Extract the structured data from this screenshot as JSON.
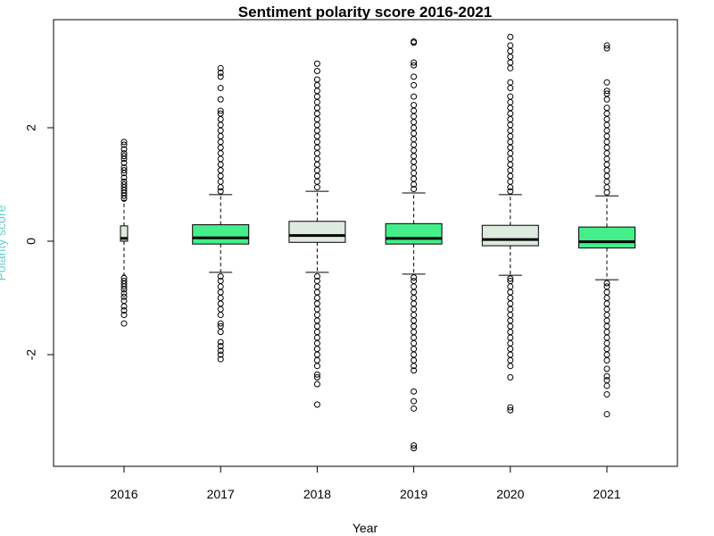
{
  "chart_data": {
    "type": "boxplot",
    "title": "Sentiment polarity score 2016-2021",
    "xlabel": "Year",
    "ylabel": "Polarity score",
    "ylim": [
      -3.9,
      3.9
    ],
    "yticks": [
      -2,
      0,
      2
    ],
    "grid": false,
    "categories": [
      "2016",
      "2017",
      "2018",
      "2019",
      "2020",
      "2021"
    ],
    "box_colors": [
      "#dfeadf",
      "#44ee88",
      "#dfeadf",
      "#44ee88",
      "#dfeadf",
      "#44ee88"
    ],
    "boxes": [
      {
        "year": "2016",
        "whisker_low": -0.6,
        "q1": 0.0,
        "median": 0.05,
        "q3": 0.27,
        "whisker_high": 0.72,
        "outliers": [
          -1.45,
          -1.3,
          -1.22,
          -1.15,
          -1.05,
          -0.98,
          -0.92,
          -0.85,
          -0.8,
          -0.75,
          -0.7,
          -0.65,
          0.75,
          0.8,
          0.85,
          0.9,
          0.95,
          1.0,
          1.05,
          1.12,
          1.2,
          1.25,
          1.3,
          1.38,
          1.45,
          1.5,
          1.55,
          1.62,
          1.7,
          1.75
        ]
      },
      {
        "year": "2017",
        "whisker_low": -0.55,
        "q1": -0.05,
        "median": 0.06,
        "q3": 0.29,
        "whisker_high": 0.82,
        "outliers": [
          -2.08,
          -2.0,
          -1.93,
          -1.85,
          -1.78,
          -1.6,
          -1.5,
          -1.45,
          -1.3,
          -1.2,
          -1.1,
          -1.0,
          -0.9,
          -0.8,
          -0.7,
          -0.62,
          0.88,
          0.95,
          1.05,
          1.15,
          1.25,
          1.35,
          1.45,
          1.55,
          1.65,
          1.75,
          1.85,
          1.95,
          2.05,
          2.15,
          2.25,
          2.3,
          2.5,
          2.7,
          2.9,
          2.97,
          3.05
        ]
      },
      {
        "year": "2018",
        "whisker_low": -0.55,
        "q1": -0.02,
        "median": 0.1,
        "q3": 0.35,
        "whisker_high": 0.88,
        "outliers": [
          -2.88,
          -2.52,
          -2.4,
          -2.35,
          -2.2,
          -2.1,
          -2.0,
          -1.9,
          -1.8,
          -1.7,
          -1.6,
          -1.5,
          -1.4,
          -1.3,
          -1.2,
          -1.1,
          -1.0,
          -0.9,
          -0.8,
          -0.7,
          -0.62,
          0.95,
          1.05,
          1.15,
          1.25,
          1.35,
          1.45,
          1.55,
          1.65,
          1.75,
          1.85,
          1.95,
          2.05,
          2.15,
          2.25,
          2.35,
          2.45,
          2.55,
          2.65,
          2.75,
          2.85,
          3.0,
          3.13
        ]
      },
      {
        "year": "2019",
        "whisker_low": -0.58,
        "q1": -0.05,
        "median": 0.05,
        "q3": 0.31,
        "whisker_high": 0.85,
        "outliers": [
          -3.65,
          -3.6,
          -2.95,
          -2.82,
          -2.65,
          -2.28,
          -2.2,
          -2.1,
          -2.0,
          -1.9,
          -1.8,
          -1.7,
          -1.6,
          -1.5,
          -1.4,
          -1.3,
          -1.2,
          -1.1,
          -1.0,
          -0.9,
          -0.8,
          -0.7,
          -0.64,
          0.92,
          1.0,
          1.1,
          1.2,
          1.3,
          1.4,
          1.5,
          1.6,
          1.7,
          1.8,
          1.9,
          2.0,
          2.1,
          2.2,
          2.3,
          2.4,
          2.55,
          2.75,
          2.9,
          3.1,
          3.15,
          3.5,
          3.52
        ]
      },
      {
        "year": "2020",
        "whisker_low": -0.6,
        "q1": -0.08,
        "median": 0.03,
        "q3": 0.28,
        "whisker_high": 0.82,
        "outliers": [
          -2.98,
          -2.93,
          -2.4,
          -2.2,
          -2.1,
          -2.0,
          -1.9,
          -1.8,
          -1.7,
          -1.6,
          -1.5,
          -1.4,
          -1.3,
          -1.2,
          -1.1,
          -1.0,
          -0.9,
          -0.8,
          -0.7,
          -0.66,
          0.88,
          0.95,
          1.05,
          1.15,
          1.25,
          1.35,
          1.45,
          1.55,
          1.65,
          1.75,
          1.85,
          1.95,
          2.05,
          2.15,
          2.25,
          2.35,
          2.45,
          2.55,
          2.7,
          2.8,
          3.05,
          3.15,
          3.25,
          3.35,
          3.45,
          3.6
        ]
      },
      {
        "year": "2021",
        "whisker_low": -0.68,
        "q1": -0.12,
        "median": -0.01,
        "q3": 0.25,
        "whisker_high": 0.8,
        "outliers": [
          -3.05,
          -2.7,
          -2.55,
          -2.45,
          -2.38,
          -2.25,
          -2.1,
          -2.0,
          -1.9,
          -1.8,
          -1.7,
          -1.6,
          -1.5,
          -1.4,
          -1.3,
          -1.2,
          -1.1,
          -1.0,
          -0.9,
          -0.8,
          -0.74,
          0.86,
          0.95,
          1.05,
          1.15,
          1.25,
          1.35,
          1.45,
          1.55,
          1.65,
          1.75,
          1.85,
          1.95,
          2.05,
          2.15,
          2.25,
          2.35,
          2.5,
          2.6,
          2.65,
          2.8,
          3.4,
          3.45
        ]
      }
    ]
  }
}
